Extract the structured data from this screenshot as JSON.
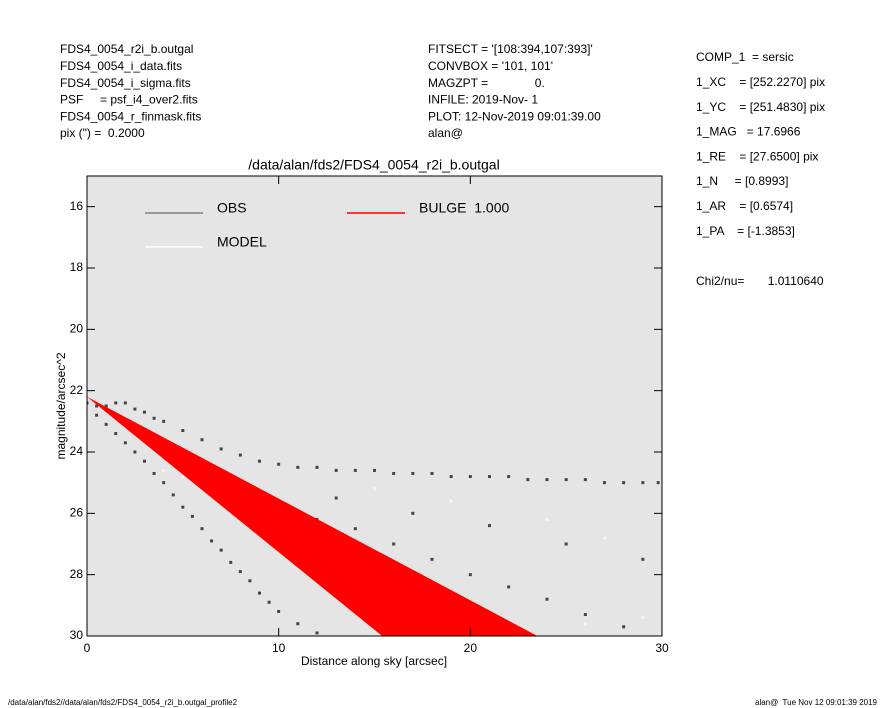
{
  "header_left": [
    "FDS4_0054_r2i_b.outgal",
    "FDS4_0054_i_data.fits",
    "FDS4_0054_i_sigma.fits",
    "PSF     = psf_i4_over2.fits",
    "FDS4_0054_r_finmask.fits",
    "pix (\") =  0.2000"
  ],
  "header_middle": [
    "FITSECT = '[108:394,107:393]'",
    "CONVBOX = '101, 101'",
    "MAGZPT =              0.",
    "INFILE: 2019-Nov- 1",
    "PLOT: 12-Nov-2019 09:01:39.00",
    "alan@"
  ],
  "header_right": [
    "COMP_1  = sersic",
    "1_XC    = [252.2270] pix",
    "1_YC    = [251.4830] pix",
    "1_MAG   = 17.6966",
    "1_RE    = [27.6500] pix",
    "1_N     = [0.8993]",
    "1_AR    = [0.6574]",
    "1_PA    = [-1.3853]"
  ],
  "chi2": "Chi2/nu=       1.0110640",
  "footer_left": "/data/alan/fds2//data/alan/fds2/FDS4_0054_r2i_b.outgal_profile2",
  "footer_right": "alan@  Tue Nov 12 09:01:39 2019",
  "chart_data": {
    "type": "scatter",
    "title": "/data/alan/fds2/FDS4_0054_r2i_b.outgal",
    "x_label": "Distance along sky [arcsec]",
    "y_label": "magnitude/arcsec^2",
    "xlim": [
      0,
      30
    ],
    "ylim": [
      30,
      15
    ],
    "xticks": [
      0,
      10,
      20,
      30
    ],
    "yticks": [
      16,
      18,
      20,
      22,
      24,
      26,
      28,
      30
    ],
    "legend": "upper left",
    "series": [
      {
        "name": "OBS",
        "color": "#444444",
        "legend_color": "#808080",
        "x": [
          0,
          0.5,
          1,
          1.5,
          2,
          2.5,
          3,
          3.5,
          4,
          5,
          6,
          7,
          8,
          9,
          10,
          11,
          12,
          13,
          14,
          15,
          16,
          17,
          18,
          19,
          20,
          21,
          22,
          23,
          24,
          25,
          26,
          27,
          28,
          29,
          29.8,
          0.5,
          1,
          1.5,
          2,
          2.5,
          3,
          3.5,
          4,
          4.5,
          5,
          5.5,
          6,
          6.5,
          7,
          7.5,
          8,
          8.5,
          9,
          9.5,
          10,
          11,
          12,
          6,
          8,
          10,
          12,
          14,
          16,
          18,
          20,
          22,
          24,
          26,
          28,
          13,
          17,
          21,
          25,
          29
        ],
        "values": [
          22.4,
          22.5,
          22.5,
          22.4,
          22.4,
          22.6,
          22.7,
          22.9,
          23.0,
          23.3,
          23.6,
          23.9,
          24.1,
          24.3,
          24.4,
          24.5,
          24.5,
          24.6,
          24.6,
          24.6,
          24.7,
          24.7,
          24.7,
          24.8,
          24.8,
          24.8,
          24.8,
          24.9,
          24.9,
          24.9,
          24.9,
          25.0,
          25.0,
          25.0,
          25.0,
          22.8,
          23.1,
          23.4,
          23.7,
          24.0,
          24.3,
          24.7,
          25.0,
          25.4,
          25.8,
          26.1,
          26.5,
          26.9,
          27.2,
          27.6,
          27.9,
          28.2,
          28.6,
          28.9,
          29.2,
          29.6,
          29.9,
          24.5,
          25.3,
          25.8,
          26.2,
          26.5,
          27,
          27.5,
          28,
          28.4,
          28.8,
          29.3,
          29.7,
          25.5,
          26,
          26.4,
          27,
          27.5
        ]
      },
      {
        "name": "MODEL",
        "color": "#f4f4f4",
        "legend_color": "#ffffff",
        "x": [
          5,
          8,
          11,
          14,
          17,
          20,
          23,
          26,
          29,
          15,
          19,
          24,
          27,
          3,
          4
        ],
        "values": [
          24.8,
          26.2,
          27.5,
          28.7,
          29.5,
          29.8,
          29.9,
          29.6,
          29.4,
          25.2,
          25.6,
          26.2,
          26.8,
          23.6,
          24.6
        ]
      },
      {
        "name": "BULGE  1.000",
        "color": "#ff0000",
        "kind": "area",
        "x": [
          0,
          15.4,
          23.5
        ],
        "values": [
          22.2,
          30,
          30
        ]
      }
    ]
  }
}
